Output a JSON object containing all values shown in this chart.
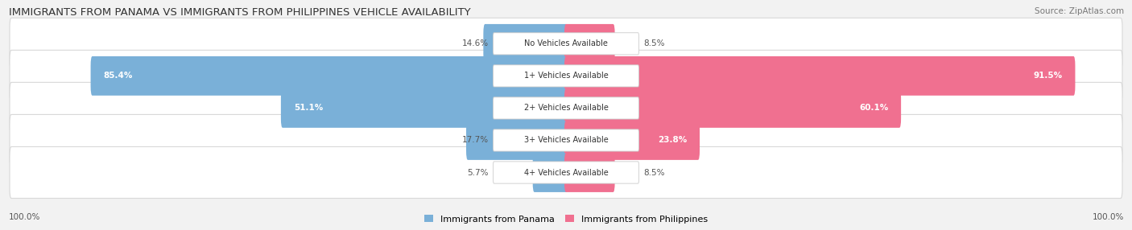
{
  "title": "IMMIGRANTS FROM PANAMA VS IMMIGRANTS FROM PHILIPPINES VEHICLE AVAILABILITY",
  "source": "Source: ZipAtlas.com",
  "categories": [
    "No Vehicles Available",
    "1+ Vehicles Available",
    "2+ Vehicles Available",
    "3+ Vehicles Available",
    "4+ Vehicles Available"
  ],
  "panama_values": [
    14.6,
    85.4,
    51.1,
    17.7,
    5.7
  ],
  "philippines_values": [
    8.5,
    91.5,
    60.1,
    23.8,
    8.5
  ],
  "panama_color": "#7ab0d8",
  "philippines_color": "#f07090",
  "panama_label": "Immigrants from Panama",
  "philippines_label": "Immigrants from Philippines",
  "background_color": "#f2f2f2",
  "row_bg": "#ffffff",
  "row_separator": "#e0e0e0",
  "text_dark": "#444444",
  "text_white": "#ffffff",
  "label_threshold": 20.0
}
